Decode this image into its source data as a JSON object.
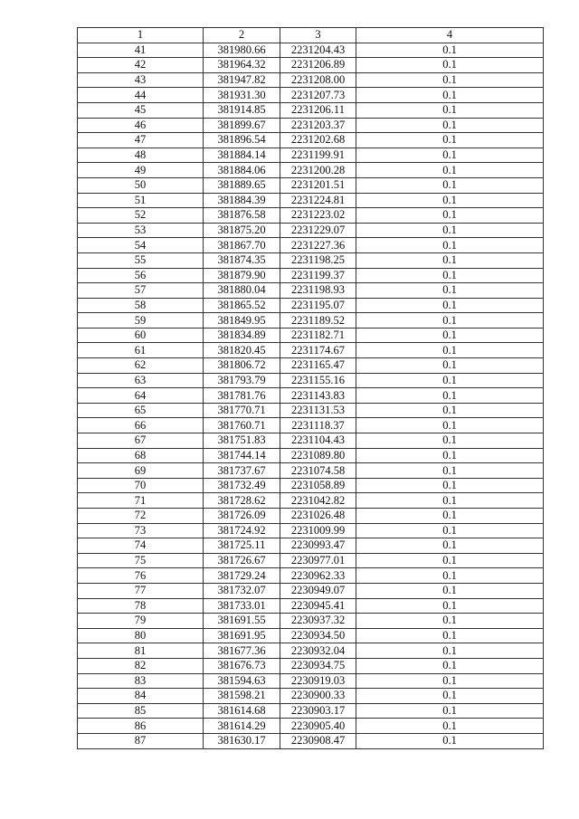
{
  "table": {
    "headers": [
      "1",
      "2",
      "3",
      "4"
    ],
    "rows": [
      [
        "41",
        "381980.66",
        "2231204.43",
        "0.1"
      ],
      [
        "42",
        "381964.32",
        "2231206.89",
        "0.1"
      ],
      [
        "43",
        "381947.82",
        "2231208.00",
        "0.1"
      ],
      [
        "44",
        "381931.30",
        "2231207.73",
        "0.1"
      ],
      [
        "45",
        "381914.85",
        "2231206.11",
        "0.1"
      ],
      [
        "46",
        "381899.67",
        "2231203.37",
        "0.1"
      ],
      [
        "47",
        "381896.54",
        "2231202.68",
        "0.1"
      ],
      [
        "48",
        "381884.14",
        "2231199.91",
        "0.1"
      ],
      [
        "49",
        "381884.06",
        "2231200.28",
        "0.1"
      ],
      [
        "50",
        "381889.65",
        "2231201.51",
        "0.1"
      ],
      [
        "51",
        "381884.39",
        "2231224.81",
        "0.1"
      ],
      [
        "52",
        "381876.58",
        "2231223.02",
        "0.1"
      ],
      [
        "53",
        "381875.20",
        "2231229.07",
        "0.1"
      ],
      [
        "54",
        "381867.70",
        "2231227.36",
        "0.1"
      ],
      [
        "55",
        "381874.35",
        "2231198.25",
        "0.1"
      ],
      [
        "56",
        "381879.90",
        "2231199.37",
        "0.1"
      ],
      [
        "57",
        "381880.04",
        "2231198.93",
        "0.1"
      ],
      [
        "58",
        "381865.52",
        "2231195.07",
        "0.1"
      ],
      [
        "59",
        "381849.95",
        "2231189.52",
        "0.1"
      ],
      [
        "60",
        "381834.89",
        "2231182.71",
        "0.1"
      ],
      [
        "61",
        "381820.45",
        "2231174.67",
        "0.1"
      ],
      [
        "62",
        "381806.72",
        "2231165.47",
        "0.1"
      ],
      [
        "63",
        "381793.79",
        "2231155.16",
        "0.1"
      ],
      [
        "64",
        "381781.76",
        "2231143.83",
        "0.1"
      ],
      [
        "65",
        "381770.71",
        "2231131.53",
        "0.1"
      ],
      [
        "66",
        "381760.71",
        "2231118.37",
        "0.1"
      ],
      [
        "67",
        "381751.83",
        "2231104.43",
        "0.1"
      ],
      [
        "68",
        "381744.14",
        "2231089.80",
        "0.1"
      ],
      [
        "69",
        "381737.67",
        "2231074.58",
        "0.1"
      ],
      [
        "70",
        "381732.49",
        "2231058.89",
        "0.1"
      ],
      [
        "71",
        "381728.62",
        "2231042.82",
        "0.1"
      ],
      [
        "72",
        "381726.09",
        "2231026.48",
        "0.1"
      ],
      [
        "73",
        "381724.92",
        "2231009.99",
        "0.1"
      ],
      [
        "74",
        "381725.11",
        "2230993.47",
        "0.1"
      ],
      [
        "75",
        "381726.67",
        "2230977.01",
        "0.1"
      ],
      [
        "76",
        "381729.24",
        "2230962.33",
        "0.1"
      ],
      [
        "77",
        "381732.07",
        "2230949.07",
        "0.1"
      ],
      [
        "78",
        "381733.01",
        "2230945.41",
        "0.1"
      ],
      [
        "79",
        "381691.55",
        "2230937.32",
        "0.1"
      ],
      [
        "80",
        "381691.95",
        "2230934.50",
        "0.1"
      ],
      [
        "81",
        "381677.36",
        "2230932.04",
        "0.1"
      ],
      [
        "82",
        "381676.73",
        "2230934.75",
        "0.1"
      ],
      [
        "83",
        "381594.63",
        "2230919.03",
        "0.1"
      ],
      [
        "84",
        "381598.21",
        "2230900.33",
        "0.1"
      ],
      [
        "85",
        "381614.68",
        "2230903.17",
        "0.1"
      ],
      [
        "86",
        "381614.29",
        "2230905.40",
        "0.1"
      ],
      [
        "87",
        "381630.17",
        "2230908.47",
        "0.1"
      ]
    ]
  }
}
